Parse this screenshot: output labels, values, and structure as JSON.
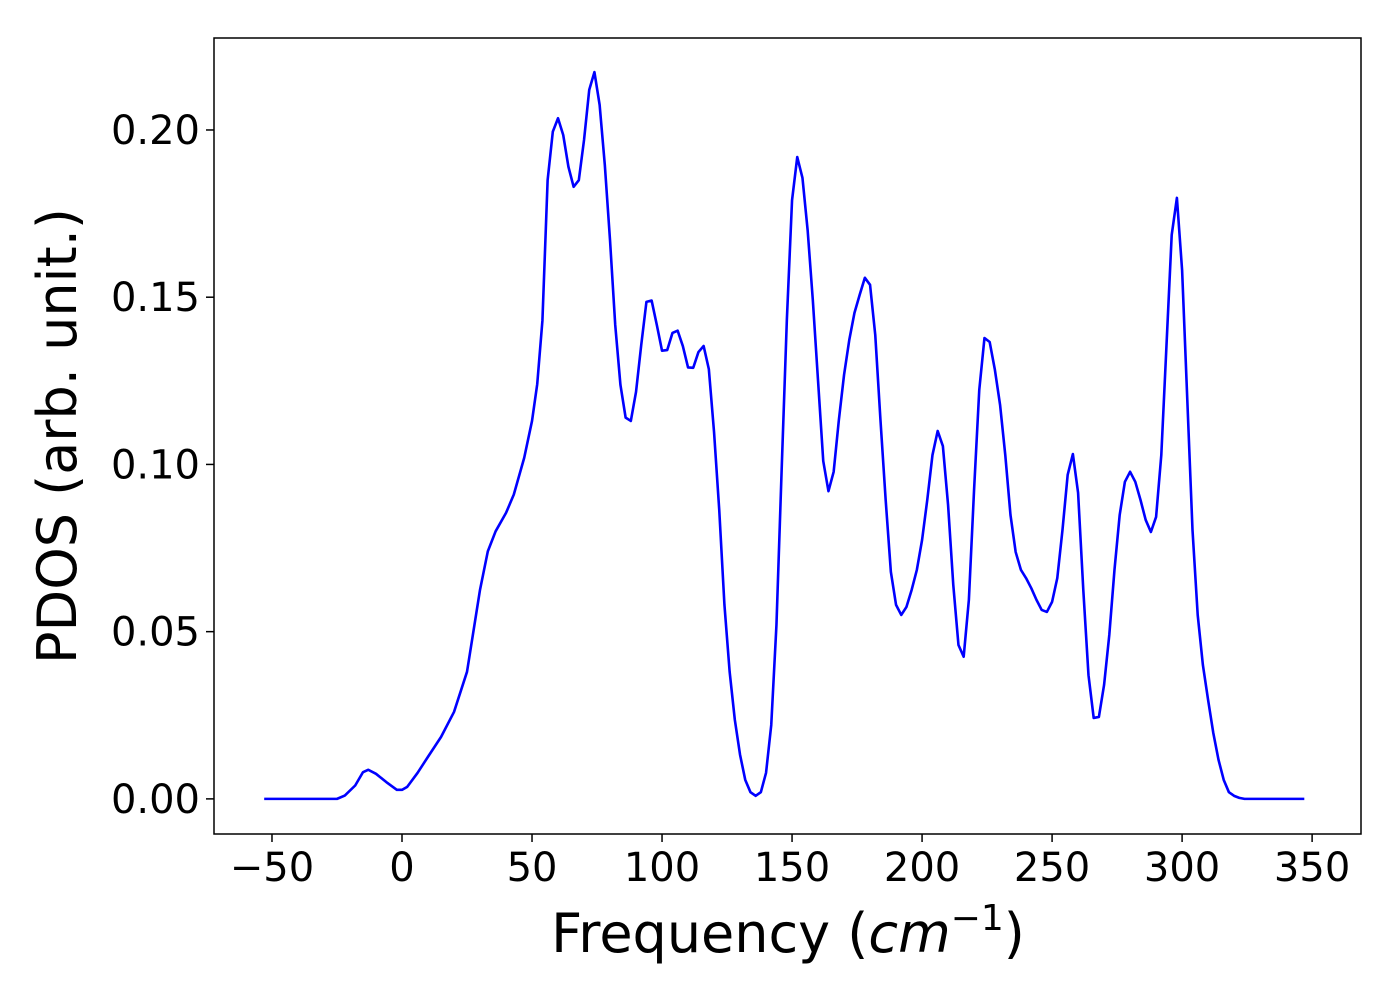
{
  "chart_data": {
    "type": "line",
    "xlabel": {
      "text": "Frequency (",
      "unit": "cm",
      "exponent": "−1",
      "close": ")"
    },
    "ylabel": "PDOS (arb. unit.)",
    "xlim": [
      -72.3,
      368.8
    ],
    "ylim": [
      -0.0105,
      0.2275
    ],
    "xticks": [
      {
        "value": -50,
        "label": "−50"
      },
      0,
      50,
      100,
      150,
      200,
      250,
      300,
      350
    ],
    "yticks": [
      {
        "value": 0,
        "label": "0.00"
      },
      {
        "value": 0.05,
        "label": "0.05"
      },
      {
        "value": 0.1,
        "label": "0.10"
      },
      {
        "value": 0.15,
        "label": "0.15"
      },
      {
        "value": 0.2,
        "label": "0.20"
      }
    ],
    "grid": false,
    "series": [
      {
        "color": "#0000ff",
        "x": [
          -53,
          -40,
          -30,
          -25,
          -22,
          -18,
          -15,
          -13,
          -10,
          -6,
          -2,
          0,
          2,
          6,
          10,
          15,
          20,
          25,
          30,
          33,
          36,
          40,
          43,
          47,
          50,
          52,
          54,
          56,
          58,
          60,
          62,
          64,
          66,
          68,
          70,
          72,
          74,
          76,
          78,
          80,
          82,
          84,
          86,
          88,
          90,
          92,
          94,
          96,
          98,
          100,
          102,
          104,
          106,
          108,
          110,
          112,
          114,
          116,
          118,
          120,
          122,
          124,
          126,
          128,
          130,
          132,
          134,
          136,
          138,
          140,
          142,
          144,
          146,
          148,
          150,
          152,
          154,
          156,
          158,
          160,
          162,
          164,
          166,
          168,
          170,
          172,
          174,
          176,
          178,
          180,
          182,
          184,
          186,
          188,
          190,
          192,
          194,
          196,
          198,
          200,
          202,
          204,
          206,
          208,
          210,
          212,
          214,
          216,
          218,
          220,
          222,
          224,
          226,
          228,
          230,
          232,
          234,
          236,
          238,
          240,
          242,
          244,
          246,
          248,
          250,
          252,
          254,
          256,
          258,
          260,
          262,
          264,
          266,
          268,
          270,
          272,
          274,
          276,
          278,
          280,
          282,
          284,
          286,
          288,
          290,
          292,
          294,
          296,
          298,
          300,
          302,
          304,
          306,
          308,
          310,
          312,
          314,
          316,
          318,
          320,
          322,
          324,
          335,
          347
        ],
        "values": [
          0,
          0,
          0,
          0,
          0.001,
          0.004,
          0.008,
          0.0087,
          0.0075,
          0.005,
          0.0027,
          0.0027,
          0.0036,
          0.0078,
          0.0126,
          0.0185,
          0.026,
          0.038,
          0.0625,
          0.074,
          0.08,
          0.0855,
          0.091,
          0.102,
          0.113,
          0.124,
          0.143,
          0.185,
          0.1995,
          0.2035,
          0.1985,
          0.189,
          0.183,
          0.185,
          0.197,
          0.212,
          0.2173,
          0.2075,
          0.1895,
          0.167,
          0.1417,
          0.1238,
          0.114,
          0.113,
          0.1217,
          0.1357,
          0.1486,
          0.149,
          0.1417,
          0.134,
          0.1342,
          0.1393,
          0.14,
          0.1354,
          0.129,
          0.1289,
          0.1336,
          0.1354,
          0.1285,
          0.1097,
          0.0864,
          0.058,
          0.038,
          0.0236,
          0.0132,
          0.0057,
          0.002,
          0.0009,
          0.002,
          0.0078,
          0.0221,
          0.052,
          0.0984,
          0.1432,
          0.179,
          0.1919,
          0.1857,
          0.17,
          0.149,
          0.125,
          0.101,
          0.092,
          0.0978,
          0.1133,
          0.1268,
          0.1372,
          0.1453,
          0.1507,
          0.1558,
          0.1537,
          0.1387,
          0.1133,
          0.0894,
          0.0679,
          0.058,
          0.055,
          0.0574,
          0.0625,
          0.0685,
          0.0774,
          0.0894,
          0.1028,
          0.11,
          0.1055,
          0.0879,
          0.064,
          0.046,
          0.0425,
          0.0595,
          0.0924,
          0.1223,
          0.1378,
          0.1366,
          0.1283,
          0.1178,
          0.1028,
          0.0849,
          0.0738,
          0.0685,
          0.066,
          0.063,
          0.0595,
          0.0565,
          0.0559,
          0.0589,
          0.066,
          0.0804,
          0.0969,
          0.1031,
          0.0915,
          0.0625,
          0.037,
          0.0242,
          0.0245,
          0.0341,
          0.049,
          0.0685,
          0.0849,
          0.0948,
          0.0978,
          0.0948,
          0.0894,
          0.0834,
          0.0798,
          0.0843,
          0.1028,
          0.1357,
          0.1686,
          0.1797,
          0.1581,
          0.1193,
          0.0804,
          0.055,
          0.04,
          0.0296,
          0.0197,
          0.0117,
          0.0057,
          0.002,
          0.0009,
          0.0003,
          0,
          0,
          0
        ]
      }
    ]
  }
}
